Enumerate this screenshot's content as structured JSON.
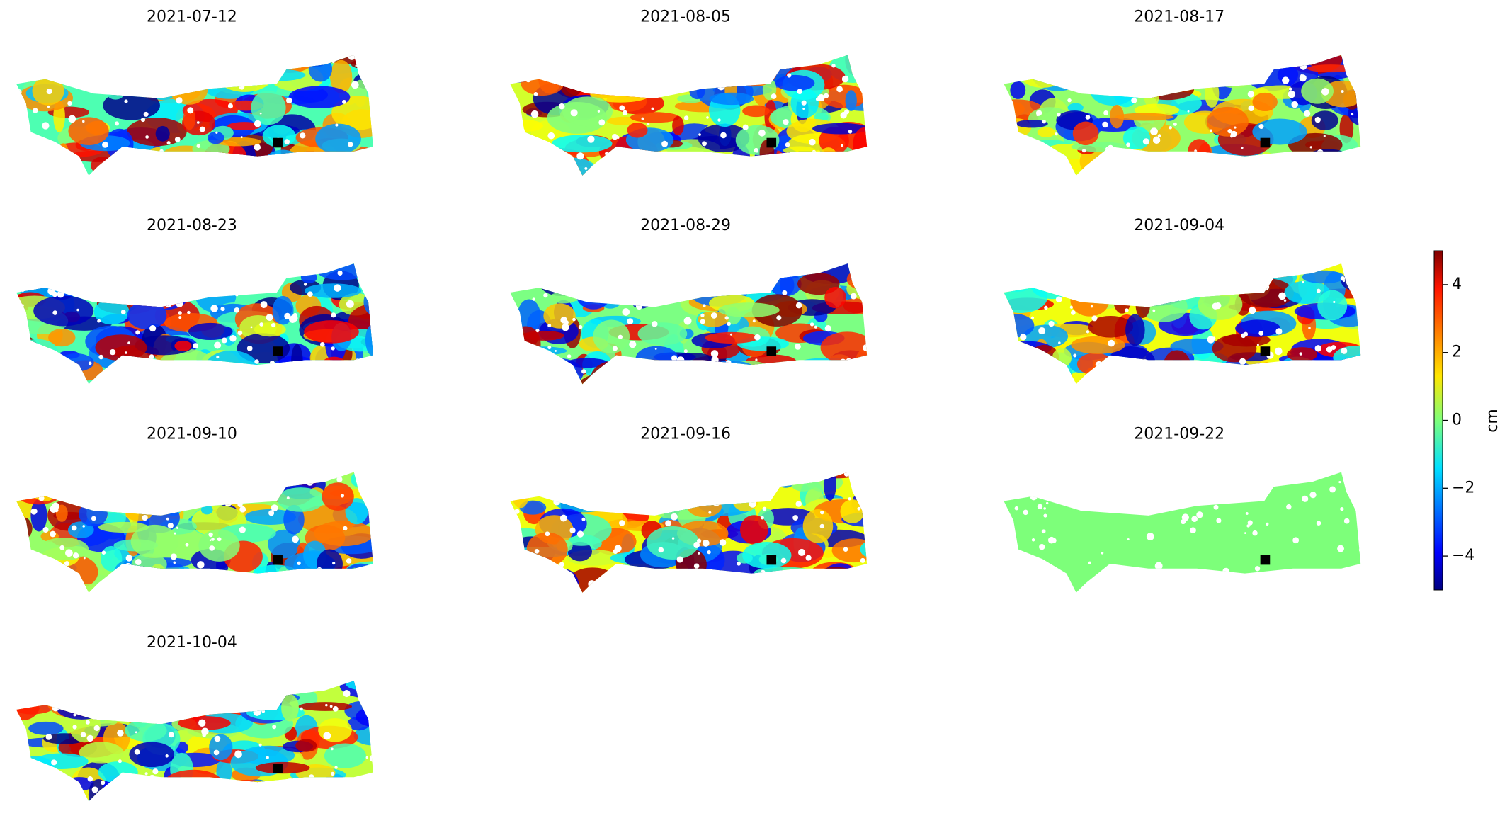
{
  "chart_data": {
    "type": "map-panels",
    "panels": [
      "2021-07-12",
      "2021-08-05",
      "2021-08-17",
      "2021-08-23",
      "2021-08-29",
      "2021-09-04",
      "2021-09-10",
      "2021-09-16",
      "2021-09-22",
      "2021-10-04"
    ],
    "colorbar": {
      "label": "cm",
      "colormap": "jet",
      "clim": [
        -5,
        5
      ],
      "ticks": [
        {
          "value": -4,
          "label": "−4"
        },
        {
          "value": -2,
          "label": "−2"
        },
        0,
        2,
        4
      ]
    }
  }
}
